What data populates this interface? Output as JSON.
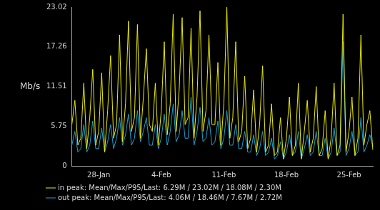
{
  "chart_data": {
    "type": "line",
    "y_label": "Mb/s",
    "categories": [
      null,
      null,
      null,
      null,
      null,
      null,
      null,
      null,
      null,
      "28-Jan",
      null,
      null,
      null,
      null,
      null,
      null,
      null,
      null,
      null,
      null,
      null,
      null,
      null,
      null,
      null,
      null,
      null,
      null,
      null,
      null,
      "4-Feb",
      null,
      null,
      null,
      null,
      null,
      null,
      null,
      null,
      null,
      null,
      null,
      null,
      null,
      null,
      null,
      null,
      null,
      null,
      null,
      null,
      "11-Feb",
      null,
      null,
      null,
      null,
      null,
      null,
      null,
      null,
      null,
      null,
      null,
      null,
      null,
      null,
      null,
      null,
      null,
      null,
      null,
      null,
      "18-Feb",
      null,
      null,
      null,
      null,
      null,
      null,
      null,
      null,
      null,
      null,
      null,
      null,
      null,
      null,
      null,
      null,
      null,
      null,
      null,
      null,
      "25-Feb",
      null,
      null,
      null,
      null,
      null,
      null,
      null,
      null
    ],
    "series": [
      {
        "name": "in peak: Mean/Max/P95/Last: 6.29M / 23.02M / 18.08M / 2.30M",
        "color": "#ecec00",
        "values": [
          6,
          9.5,
          3,
          4,
          12,
          2.5,
          7,
          14,
          3,
          5,
          13.5,
          2,
          8,
          16,
          4,
          6,
          19,
          3.5,
          9,
          21,
          5,
          7,
          20.5,
          4,
          10,
          17,
          6,
          5,
          12,
          3,
          8,
          18,
          4.5,
          9,
          22,
          5,
          11,
          21.5,
          6,
          7,
          20,
          4,
          10,
          22.5,
          5,
          8,
          19,
          6,
          6,
          15,
          3,
          9,
          23,
          4,
          7,
          18,
          3.5,
          5,
          13,
          2.5,
          4,
          11,
          2,
          6,
          14.5,
          2,
          3,
          9,
          1.5,
          2,
          7,
          1,
          4,
          10,
          1.5,
          3,
          12,
          1,
          5,
          9.5,
          2,
          4,
          11.5,
          1.5,
          2.5,
          8,
          1,
          4,
          12,
          1.5,
          3,
          22,
          2,
          5,
          10,
          1.5,
          4,
          19,
          3,
          6,
          8,
          2.3
        ]
      },
      {
        "name": "out peak: Mean/Max/P95/Last: 4.06M / 18.46M / 7.67M / 2.72M",
        "color": "#1ea0cc",
        "values": [
          3,
          5,
          2,
          2.5,
          6,
          2,
          3,
          6.5,
          2.5,
          2.5,
          5.5,
          2,
          3.5,
          6,
          2.5,
          4,
          7,
          3,
          4.5,
          7.5,
          3,
          4,
          8,
          3.5,
          5,
          7,
          3,
          3,
          6,
          2.5,
          4,
          7.5,
          3,
          5,
          9,
          3.5,
          4.5,
          8,
          4,
          4,
          10,
          3,
          5,
          8.5,
          3.5,
          4,
          7,
          3,
          3.5,
          6.5,
          2.5,
          4,
          8,
          3,
          3,
          6,
          2.5,
          2.5,
          5,
          2,
          2,
          4.5,
          1.5,
          2.5,
          5,
          1.5,
          2,
          4,
          1,
          1.5,
          3.5,
          1,
          2,
          4.5,
          1.5,
          2,
          5,
          1,
          2.5,
          4.5,
          1.5,
          2,
          5,
          1.5,
          1.5,
          4,
          1,
          2,
          5.5,
          1.5,
          2,
          18,
          1.5,
          2.5,
          5,
          1.5,
          2,
          7,
          2,
          3,
          4.5,
          2.72
        ]
      }
    ],
    "ylim": [
      0,
      23.02
    ],
    "yticks": [
      0,
      5.75,
      11.51,
      17.26,
      23.02
    ],
    "grid": false,
    "legend": "bottom-left"
  }
}
